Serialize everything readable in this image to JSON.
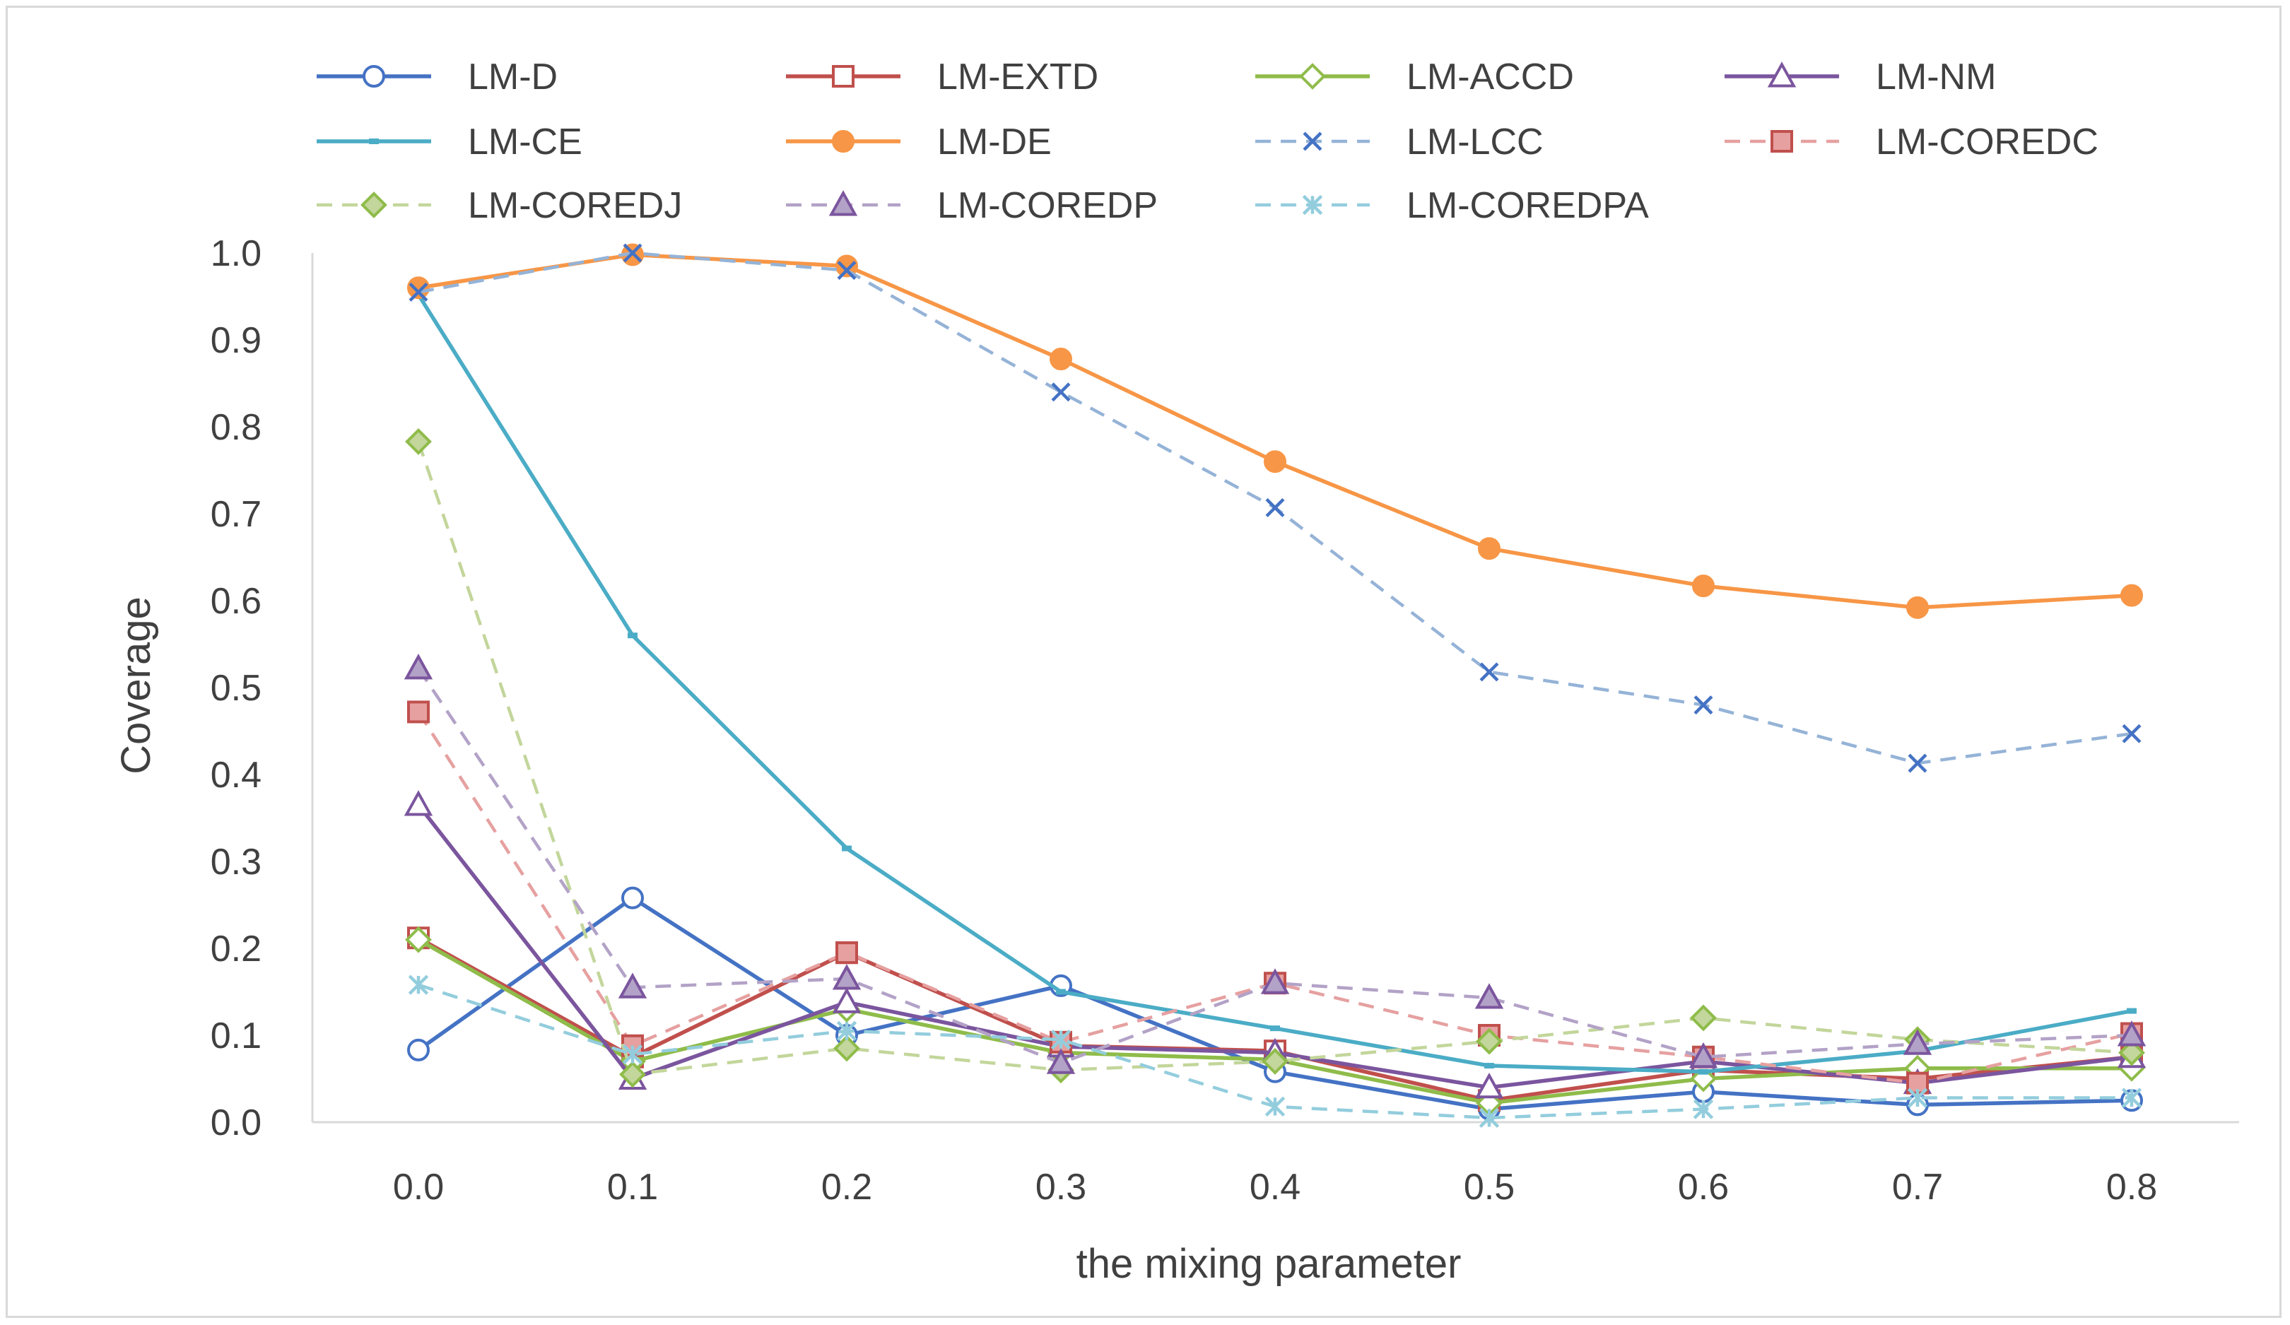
{
  "chart_data": {
    "type": "line",
    "title": "",
    "xlabel": "the mixing parameter",
    "ylabel": "Coverage",
    "x": [
      0.0,
      0.1,
      0.2,
      0.3,
      0.4,
      0.5,
      0.6,
      0.7,
      0.8
    ],
    "x_tick_labels": [
      "0.0",
      "0.1",
      "0.2",
      "0.3",
      "0.4",
      "0.5",
      "0.6",
      "0.7",
      "0.8"
    ],
    "ylim": [
      0.0,
      1.0
    ],
    "y_tick_labels": [
      "0.0",
      "0.1",
      "0.2",
      "0.3",
      "0.4",
      "0.5",
      "0.6",
      "0.7",
      "0.8",
      "0.9",
      "1.0"
    ],
    "grid": false,
    "legend_position": "top",
    "series": [
      {
        "name": "LM-D",
        "color": "#4472C4",
        "dashed": false,
        "marker": "circle",
        "filled": false,
        "values": [
          0.083,
          0.258,
          0.1,
          0.157,
          0.058,
          0.015,
          0.035,
          0.02,
          0.025
        ]
      },
      {
        "name": "LM-EXTD",
        "color": "#C0504D",
        "dashed": false,
        "marker": "square",
        "filled": false,
        "values": [
          0.212,
          0.075,
          0.195,
          0.088,
          0.082,
          0.025,
          0.06,
          0.05,
          0.075
        ]
      },
      {
        "name": "LM-ACCD",
        "color": "#8FBC4A",
        "dashed": false,
        "marker": "diamond",
        "filled": false,
        "values": [
          0.21,
          0.07,
          0.13,
          0.08,
          0.072,
          0.022,
          0.05,
          0.062,
          0.062
        ]
      },
      {
        "name": "LM-NM",
        "color": "#7B559E",
        "dashed": false,
        "marker": "triangle",
        "filled": false,
        "values": [
          0.365,
          0.05,
          0.138,
          0.087,
          0.08,
          0.04,
          0.07,
          0.045,
          0.075
        ]
      },
      {
        "name": "LM-CE",
        "color": "#4BACC6",
        "dashed": false,
        "marker": "dash",
        "filled": true,
        "values": [
          0.952,
          0.56,
          0.315,
          0.15,
          0.108,
          0.065,
          0.058,
          0.082,
          0.128
        ]
      },
      {
        "name": "LM-DE",
        "color": "#F79646",
        "dashed": false,
        "marker": "circle",
        "filled": true,
        "values": [
          0.96,
          0.998,
          0.985,
          0.878,
          0.76,
          0.66,
          0.617,
          0.592,
          0.606
        ]
      },
      {
        "name": "LM-LCC",
        "color": "#95B3D7",
        "markerColor": "#4472C4",
        "dashed": true,
        "marker": "x",
        "filled": false,
        "values": [
          0.955,
          1.0,
          0.98,
          0.84,
          0.707,
          0.518,
          0.48,
          0.413,
          0.447
        ]
      },
      {
        "name": "LM-COREDC",
        "color": "#E6A0A0",
        "markerColor": "#C0504D",
        "markerFill": "#E6A0A0",
        "dashed": true,
        "marker": "square",
        "filled": true,
        "values": [
          0.472,
          0.088,
          0.195,
          0.092,
          0.16,
          0.1,
          0.075,
          0.045,
          0.102
        ]
      },
      {
        "name": "LM-COREDJ",
        "color": "#C3D69B",
        "markerColor": "#8FBC4A",
        "markerFill": "#C3D69B",
        "dashed": true,
        "marker": "diamond",
        "filled": true,
        "values": [
          0.783,
          0.055,
          0.085,
          0.06,
          0.07,
          0.093,
          0.12,
          0.095,
          0.08
        ]
      },
      {
        "name": "LM-COREDP",
        "color": "#B3A2C7",
        "markerColor": "#7B559E",
        "markerFill": "#B3A2C7",
        "dashed": true,
        "marker": "triangle",
        "filled": true,
        "values": [
          0.522,
          0.155,
          0.165,
          0.068,
          0.16,
          0.143,
          0.075,
          0.09,
          0.1
        ]
      },
      {
        "name": "LM-COREDPA",
        "color": "#93CDDD",
        "markerColor": "#93CDDD",
        "dashed": true,
        "marker": "asterisk",
        "filled": false,
        "values": [
          0.158,
          0.078,
          0.105,
          0.095,
          0.018,
          0.005,
          0.015,
          0.028,
          0.028
        ]
      }
    ]
  },
  "colors": {
    "axis_line": "#d9d9d9",
    "text": "#404040",
    "background": "#ffffff"
  }
}
